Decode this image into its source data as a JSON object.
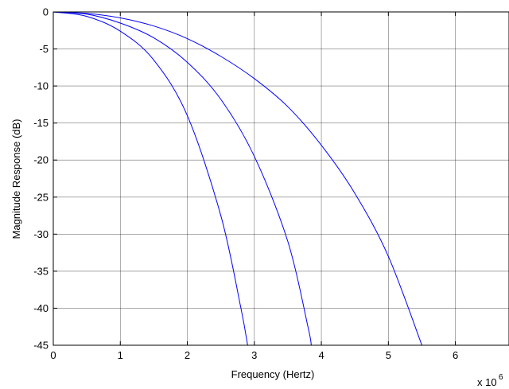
{
  "chart_data": {
    "type": "line",
    "title": "",
    "xlabel": "Frequency (Hertz)",
    "ylabel": "Magnitude Response (dB)",
    "x_exponent_label": "x 10",
    "x_exponent_power": "6",
    "xlim": [
      0,
      6.8
    ],
    "ylim": [
      -45,
      0
    ],
    "xticks": [
      0,
      1,
      2,
      3,
      4,
      5,
      6
    ],
    "yticks": [
      0,
      -5,
      -10,
      -15,
      -20,
      -25,
      -30,
      -35,
      -40,
      -45
    ],
    "grid": true,
    "color": "#0000ff",
    "series": [
      {
        "x": [
          0,
          0.5,
          1.0,
          1.5,
          2.0,
          2.5,
          2.8,
          2.9
        ],
        "y": [
          0,
          -0.6,
          -2.6,
          -6.5,
          -14.0,
          -27.5,
          -40.0,
          -45.0
        ]
      },
      {
        "x": [
          0,
          0.5,
          1.0,
          1.5,
          2.0,
          2.5,
          3.0,
          3.5,
          3.8,
          3.85
        ],
        "y": [
          0,
          -0.3,
          -1.5,
          -3.5,
          -6.8,
          -11.8,
          -19.5,
          -31.0,
          -42.5,
          -45.0
        ]
      },
      {
        "x": [
          0,
          0.5,
          1.0,
          1.5,
          2.0,
          2.5,
          3.0,
          3.5,
          4.0,
          4.5,
          5.0,
          5.5
        ],
        "y": [
          0,
          -0.2,
          -0.8,
          -1.9,
          -3.6,
          -6.0,
          -9.0,
          -12.8,
          -18.0,
          -24.5,
          -33.0,
          -45.0
        ]
      }
    ]
  }
}
